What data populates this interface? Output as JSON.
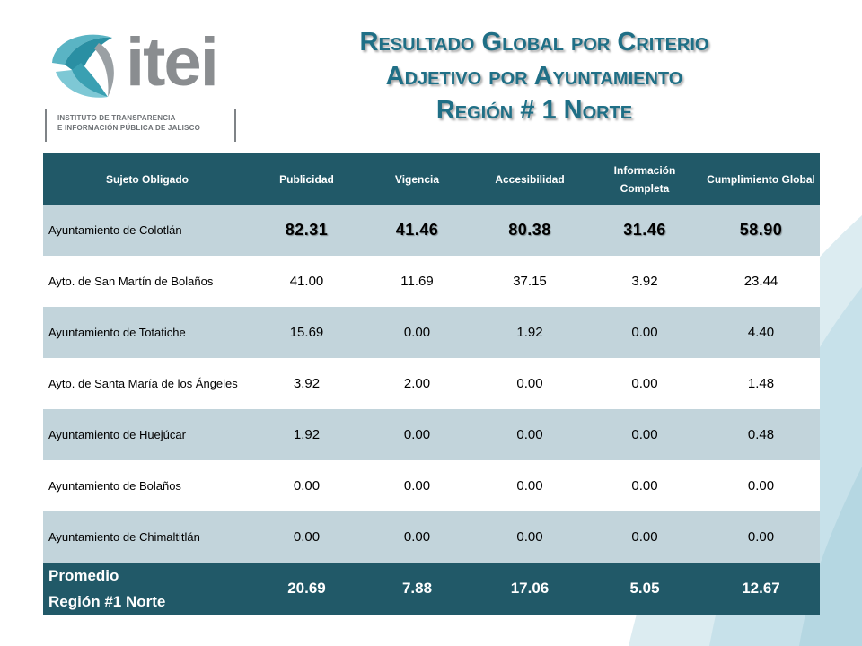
{
  "logo": {
    "word": "itei",
    "subtitle_line1": "INSTITUTO DE TRANSPARENCIA",
    "subtitle_line2": "E INFORMACIÓN PÚBLICA DE JALISCO"
  },
  "title": {
    "line1": "Resultado Global por Criterio",
    "line2": "Adjetivo por Ayuntamiento",
    "line3": "Región # 1 Norte"
  },
  "table": {
    "headers": [
      "Sujeto Obligado",
      "Publicidad",
      "Vigencia",
      "Accesibilidad",
      "Información Completa",
      "Cumplimiento Global"
    ],
    "rows": [
      {
        "name": "Ayuntamiento de Colotlán",
        "values": [
          "82.31",
          "41.46",
          "80.38",
          "31.46",
          "58.90"
        ]
      },
      {
        "name": "Ayto. de San Martín de Bolaños",
        "values": [
          "41.00",
          "11.69",
          "37.15",
          "3.92",
          "23.44"
        ]
      },
      {
        "name": "Ayuntamiento de Totatiche",
        "values": [
          "15.69",
          "0.00",
          "1.92",
          "0.00",
          "4.40"
        ]
      },
      {
        "name": "Ayto. de Santa María de los Ángeles",
        "values": [
          "3.92",
          "2.00",
          "0.00",
          "0.00",
          "1.48"
        ]
      },
      {
        "name": "Ayuntamiento de Huejúcar",
        "values": [
          "1.92",
          "0.00",
          "0.00",
          "0.00",
          "0.48"
        ]
      },
      {
        "name": "Ayuntamiento de Bolaños",
        "values": [
          "0.00",
          "0.00",
          "0.00",
          "0.00",
          "0.00"
        ]
      },
      {
        "name": "Ayuntamiento de Chimaltitlán",
        "values": [
          "0.00",
          "0.00",
          "0.00",
          "0.00",
          "0.00"
        ]
      }
    ],
    "average": {
      "label_line1": "Promedio",
      "label_line2": "Región #1 Norte",
      "values": [
        "20.69",
        "7.88",
        "17.06",
        "5.05",
        "12.67"
      ]
    }
  },
  "colors": {
    "header_bg": "#215968",
    "row_alt_bg": "#c2d4db",
    "title_color": "#1f6f86",
    "logo_teal": "#2a8fa3",
    "logo_gray": "#8a8d90"
  }
}
